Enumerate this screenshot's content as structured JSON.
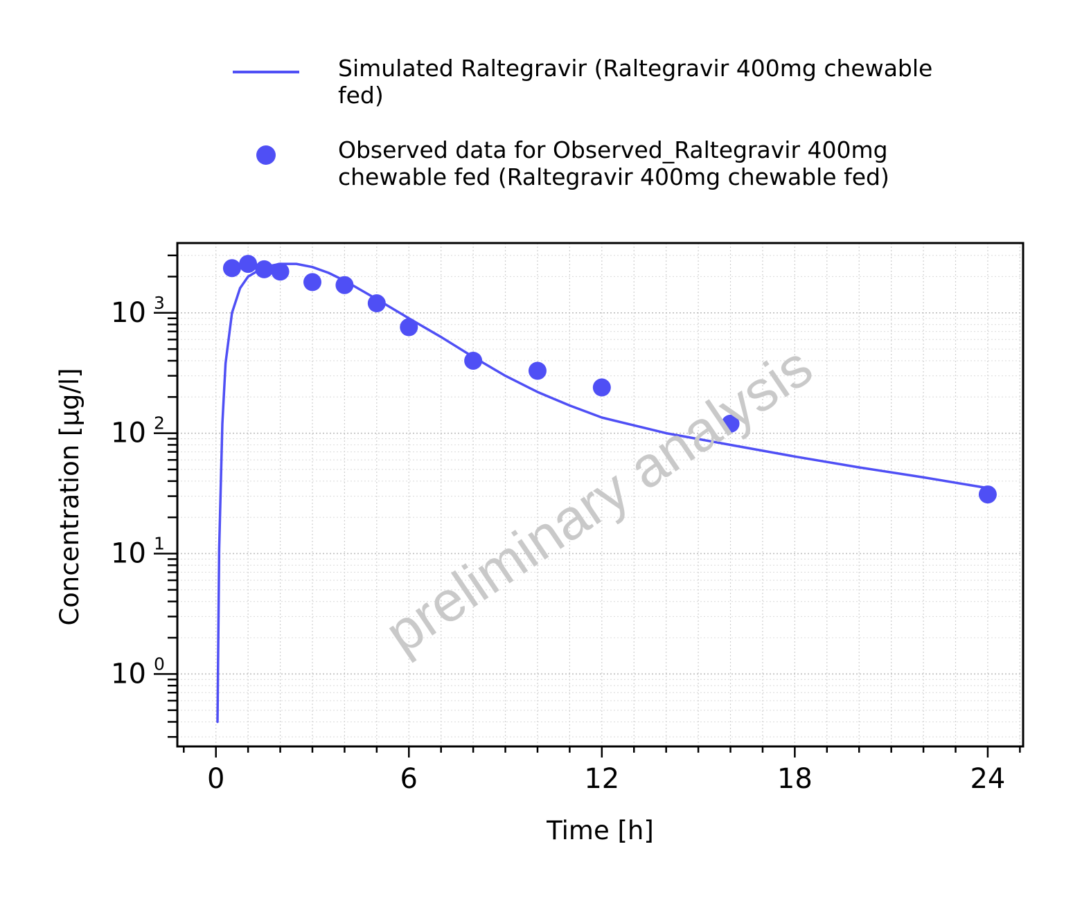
{
  "chart_data": {
    "type": "scatter",
    "watermark": "preliminary analysis",
    "xlabel": "Time [h]",
    "ylabel": "Concentration [µg/l]",
    "xlim": [
      -1.2,
      25.1
    ],
    "ylim": [
      0.25,
      3800
    ],
    "yscale": "log",
    "grid": true,
    "legend_position": "top",
    "x_ticks": [
      0,
      6,
      12,
      18,
      24
    ],
    "y_ticks": [
      {
        "value": 1,
        "base": "10",
        "exp": "0"
      },
      {
        "value": 10,
        "base": "10",
        "exp": "1"
      },
      {
        "value": 100,
        "base": "10",
        "exp": "2"
      },
      {
        "value": 1000,
        "base": "10",
        "exp": "3"
      }
    ],
    "series": [
      {
        "name": "Simulated Raltegravir (Raltegravir 400mg chewable fed)",
        "legend_lines": [
          "Simulated Raltegravir (Raltegravir 400mg chewable",
          "fed)"
        ],
        "kind": "line",
        "color": "#4f4ff5",
        "x": [
          0.05,
          0.1,
          0.2,
          0.3,
          0.5,
          0.75,
          1.0,
          1.5,
          2.0,
          2.5,
          3.0,
          3.5,
          4.0,
          5.0,
          6.0,
          7.0,
          8.0,
          9.0,
          10.0,
          11.0,
          12.0,
          14.0,
          16.0,
          18.0,
          20.0,
          22.0,
          24.0
        ],
        "y": [
          0.4,
          11,
          120,
          380,
          1000,
          1600,
          2000,
          2400,
          2550,
          2550,
          2400,
          2150,
          1850,
          1300,
          900,
          630,
          430,
          300,
          220,
          170,
          135,
          100,
          80,
          64,
          52,
          43,
          35
        ]
      },
      {
        "name": "Observed data for Observed_Raltegravir 400mg chewable fed (Raltegravir 400mg chewable fed)",
        "legend_lines": [
          "Observed data for Observed_Raltegravir 400mg",
          "chewable fed (Raltegravir 400mg chewable fed)"
        ],
        "kind": "scatter",
        "color": "#4f4ff5",
        "x": [
          0.5,
          1.0,
          1.5,
          2.0,
          3.0,
          4.0,
          5.0,
          6.0,
          8.0,
          10.0,
          12.0,
          16.0,
          24.0
        ],
        "y": [
          2350,
          2550,
          2300,
          2200,
          1800,
          1700,
          1200,
          760,
          400,
          330,
          240,
          120,
          31
        ]
      }
    ]
  }
}
